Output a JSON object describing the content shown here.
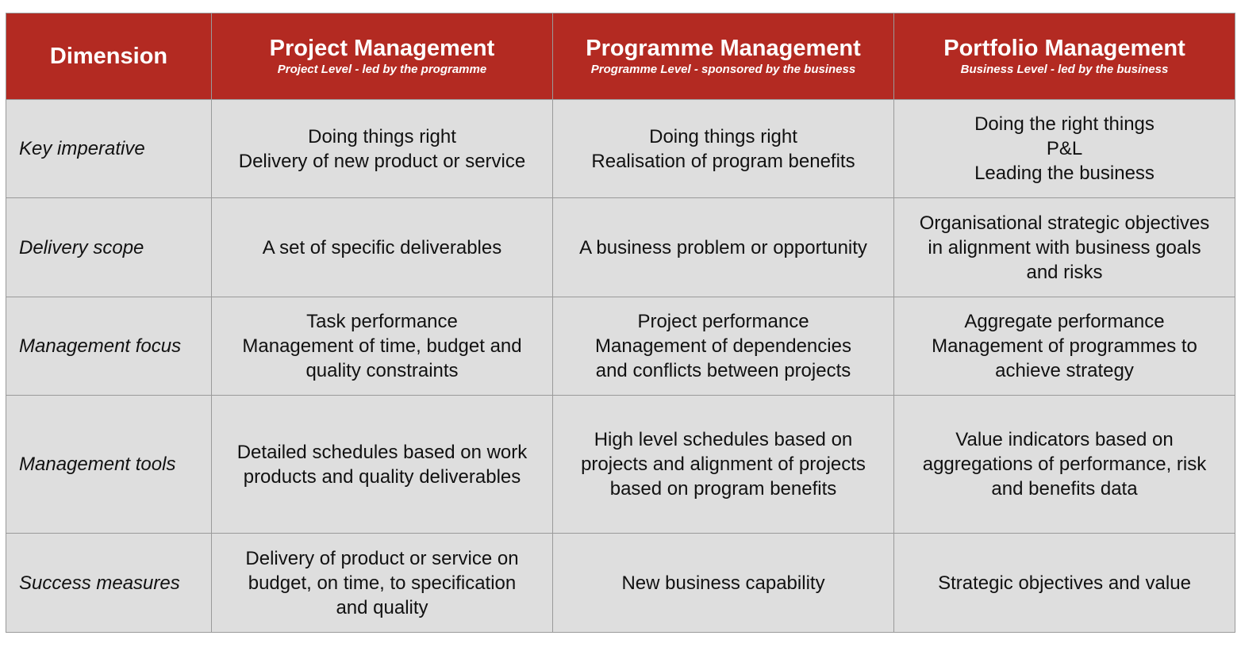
{
  "header": {
    "dimension": "Dimension",
    "columns": [
      {
        "title": "Project Management",
        "subtitle": "Project Level - led by the programme"
      },
      {
        "title": "Programme Management",
        "subtitle": "Programme Level - sponsored by the business"
      },
      {
        "title": "Portfolio Management",
        "subtitle": "Business Level - led by the business"
      }
    ]
  },
  "rows": [
    {
      "dimension": "Key imperative",
      "cells": [
        [
          "Doing things right",
          "Delivery of new product or service"
        ],
        [
          "Doing things right",
          "Realisation of program benefits"
        ],
        [
          "Doing the right things",
          "P&L",
          "Leading the business"
        ]
      ]
    },
    {
      "dimension": "Delivery scope",
      "cells": [
        [
          "A set of specific deliverables"
        ],
        [
          "A business problem or opportunity"
        ],
        [
          "Organisational strategic objectives",
          "in alignment with business goals",
          "and risks"
        ]
      ]
    },
    {
      "dimension": "Management focus",
      "cells": [
        [
          "Task performance",
          "Management of time, budget and",
          "quality constraints"
        ],
        [
          "Project performance",
          "Management of dependencies",
          "and conflicts between projects"
        ],
        [
          "Aggregate performance",
          "Management of programmes to",
          "achieve strategy"
        ]
      ]
    },
    {
      "dimension": "Management tools",
      "cells": [
        [
          "Detailed schedules based on work",
          "products and quality deliverables"
        ],
        [
          "High level schedules based on",
          "projects and alignment of projects",
          "based on program benefits"
        ],
        [
          "Value indicators based on",
          "aggregations of performance, risk",
          "and benefits data"
        ]
      ]
    },
    {
      "dimension": "Success measures",
      "cells": [
        [
          "Delivery of product or service on",
          "budget, on time, to specification",
          "and quality"
        ],
        [
          "New business capability"
        ],
        [
          "Strategic objectives and value"
        ]
      ]
    }
  ],
  "colors": {
    "header_bg": "#b32a22",
    "cell_bg": "#dedede",
    "border": "#9a9a9a"
  }
}
